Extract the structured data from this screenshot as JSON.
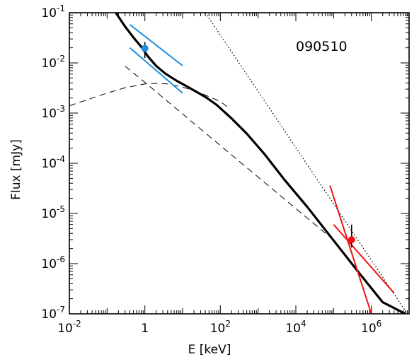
{
  "chart_data": {
    "type": "line",
    "annotation": "090510",
    "xlabel": "E [keV]",
    "ylabel": "Flux [mJy]",
    "xscale": "log",
    "yscale": "log",
    "xlim": [
      0.01,
      10000000
    ],
    "ylim": [
      1e-07,
      0.1
    ],
    "grid": false,
    "colors": {
      "axes": "#000000",
      "optical": "#1e90e0",
      "xray": "#ee1111",
      "model": "#000000"
    },
    "x_ticks": [
      {
        "value": 0.01,
        "base": "10",
        "exp": "-2"
      },
      {
        "value": 1,
        "base": "1",
        "exp": ""
      },
      {
        "value": 100,
        "base": "10",
        "exp": "2"
      },
      {
        "value": 10000,
        "base": "10",
        "exp": "4"
      },
      {
        "value": 1000000,
        "base": "10",
        "exp": "6"
      }
    ],
    "y_ticks": [
      {
        "value": 0.1,
        "base": "10",
        "exp": "-1"
      },
      {
        "value": 0.01,
        "base": "10",
        "exp": "-2"
      },
      {
        "value": 0.001,
        "base": "10",
        "exp": "-3"
      },
      {
        "value": 0.0001,
        "base": "10",
        "exp": "-4"
      },
      {
        "value": 1e-05,
        "base": "10",
        "exp": "-5"
      },
      {
        "value": 1e-06,
        "base": "10",
        "exp": "-6"
      },
      {
        "value": 1e-07,
        "base": "10",
        "exp": "-7"
      }
    ],
    "series": [
      {
        "style": "solid-thick",
        "color": "#000000",
        "x": [
          0.17,
          0.3,
          0.5,
          0.8,
          1.2,
          2.0,
          3.5,
          7,
          15,
          40,
          80,
          200,
          500,
          1500,
          5000,
          20000,
          100000,
          500000,
          2000000,
          8000000
        ],
        "y": [
          0.1,
          0.053,
          0.032,
          0.021,
          0.0135,
          0.0087,
          0.0061,
          0.0044,
          0.0032,
          0.0021,
          0.00145,
          0.00078,
          0.00039,
          0.00015,
          4.7e-05,
          1.35e-05,
          2.9e-06,
          6.2e-07,
          1.7e-07,
          1e-07
        ]
      },
      {
        "style": "dashed-synchrotron-peak",
        "color": "#000000",
        "x": [
          0.01,
          0.05,
          0.1,
          0.3,
          1,
          2,
          4,
          10,
          30,
          100,
          170
        ],
        "y": [
          0.0014,
          0.0021,
          0.0025,
          0.0032,
          0.0038,
          0.0039,
          0.0038,
          0.0033,
          0.0025,
          0.0017,
          0.00125
        ]
      },
      {
        "style": "dashed-powerlaw",
        "color": "#000000",
        "x": [
          0.3,
          1,
          10,
          100,
          1000,
          10000,
          100000
        ],
        "y": [
          0.0086,
          0.0041,
          0.00096,
          0.000226,
          5.3e-05,
          1.25e-05,
          2.95e-06
        ]
      },
      {
        "style": "dotted",
        "color": "#000000",
        "x": [
          40,
          9000000
        ],
        "y": [
          0.1,
          1e-07
        ]
      }
    ],
    "points": [
      {
        "x": 1,
        "y": 0.0195,
        "color": "#1e90e0",
        "err_low": 0.0125,
        "err_high": 0.026
      },
      {
        "x": 300000,
        "y": 3e-06,
        "color": "#ee1111",
        "err_low": 2.1e-06,
        "err_high": 6e-06
      }
    ],
    "slope_lines": [
      {
        "color": "#1e90e0",
        "x": [
          0.4,
          10
        ],
        "y": [
          0.058,
          0.0088
        ]
      },
      {
        "color": "#1e90e0",
        "x": [
          0.4,
          10
        ],
        "y": [
          0.02,
          0.0025
        ]
      },
      {
        "color": "#ee1111",
        "x": [
          100000,
          4000000
        ],
        "y": [
          6e-06,
          2.6e-07
        ]
      },
      {
        "color": "#ee1111",
        "x": [
          80000,
          1000000
        ],
        "y": [
          3.6e-05,
          1e-07
        ]
      }
    ]
  }
}
